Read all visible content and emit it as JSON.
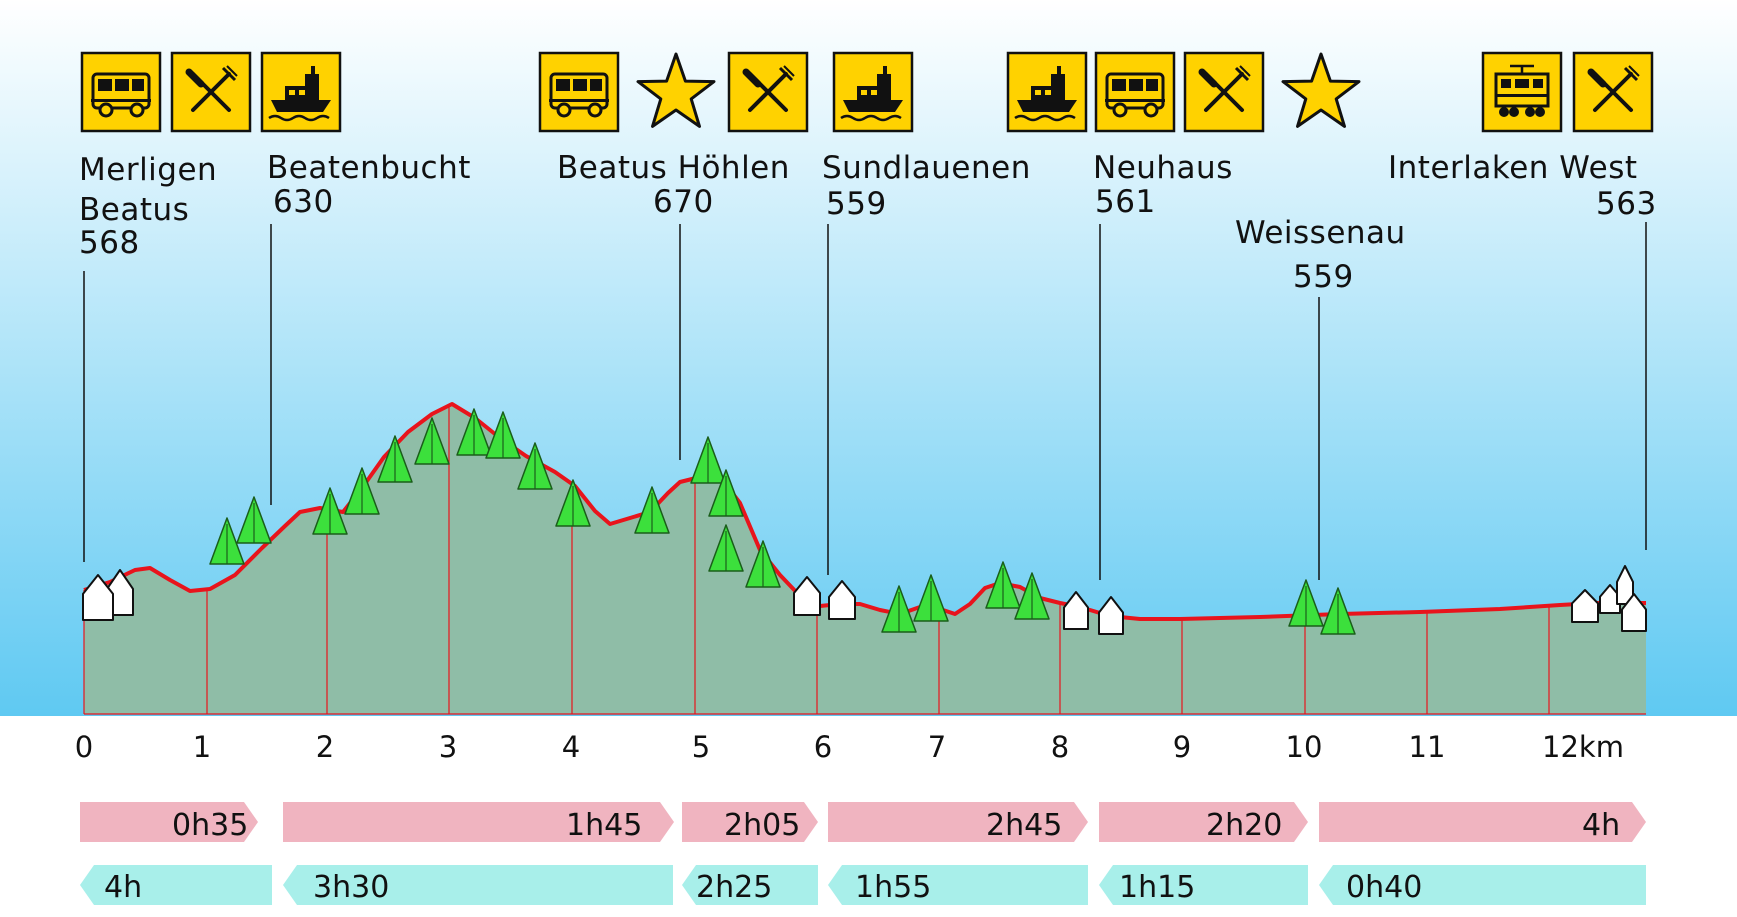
{
  "stops": [
    {
      "name": "Merligen",
      "name2": "Beatus",
      "elevation": "568",
      "icons": [
        "bus-icon",
        "restaurant-icon",
        "boat-icon"
      ]
    },
    {
      "name": "Beatenbucht",
      "elevation": "630",
      "icons": []
    },
    {
      "name": "Beatus Höhlen",
      "elevation": "670",
      "icons": [
        "bus-icon",
        "star-icon",
        "restaurant-icon"
      ]
    },
    {
      "name": "Sundlauenen",
      "elevation": "559",
      "icons": [
        "boat-icon"
      ]
    },
    {
      "name": "Neuhaus",
      "elevation": "561",
      "icons": [
        "boat-icon",
        "bus-icon",
        "restaurant-icon",
        "star-icon"
      ]
    },
    {
      "name": "Weissenau",
      "elevation": "559",
      "icons": []
    },
    {
      "name": "Interlaken West",
      "elevation": "563",
      "icons": [
        "train-icon",
        "restaurant-icon"
      ]
    }
  ],
  "km_labels": [
    "0",
    "1",
    "2",
    "3",
    "4",
    "5",
    "6",
    "7",
    "8",
    "9",
    "10",
    "11",
    "12km"
  ],
  "times_forward": [
    "0h35",
    "1h45",
    "2h05",
    "2h45",
    "2h20",
    "4h"
  ],
  "times_backward": [
    "4h",
    "3h30",
    "2h25",
    "1h55",
    "1h15",
    "0h40"
  ],
  "colors": {
    "icon_yellow": "#FFD200",
    "profile_fill": "#8FBDA7",
    "profile_line": "#E8141C",
    "forward_arrow": "#F0B4C0",
    "backward_arrow": "#A8EFEA",
    "tree_green": "#3CE03C",
    "sky_bottom": "#5FC9F2"
  }
}
